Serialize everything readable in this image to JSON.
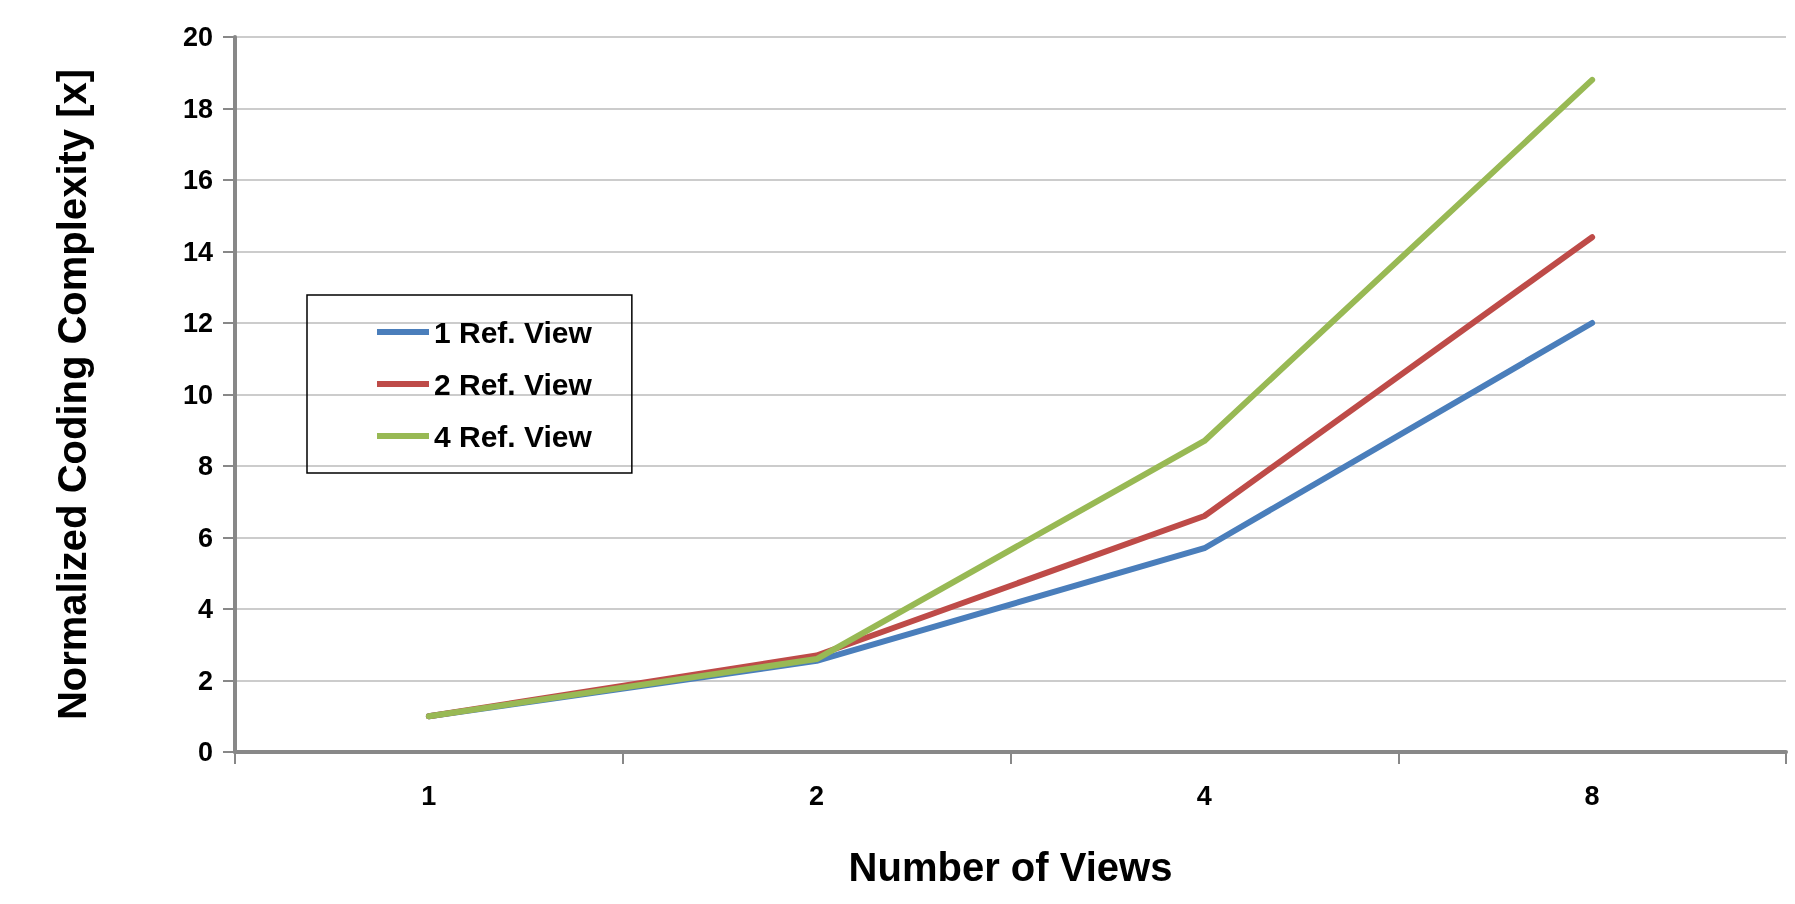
{
  "chart_data": {
    "type": "line",
    "xlabel": "Number of Views",
    "ylabel": "Normalized Coding Complexity [x]",
    "categories": [
      "1",
      "2",
      "4",
      "8"
    ],
    "series": [
      {
        "name": "1 Ref. View",
        "color": "#4a7ebb",
        "values": [
          1.0,
          2.55,
          5.7,
          12.0
        ]
      },
      {
        "name": "2 Ref. View",
        "color": "#be4b48",
        "values": [
          1.0,
          2.7,
          6.6,
          14.4
        ]
      },
      {
        "name": "4 Ref. View",
        "color": "#98b954",
        "values": [
          1.0,
          2.6,
          8.7,
          18.8
        ]
      }
    ],
    "ylim": [
      0,
      20
    ],
    "yticks": [
      0,
      2,
      4,
      6,
      8,
      10,
      12,
      14,
      16,
      18,
      20
    ],
    "grid": "y",
    "legend": "left",
    "marker": "none",
    "line_style": "solid"
  }
}
